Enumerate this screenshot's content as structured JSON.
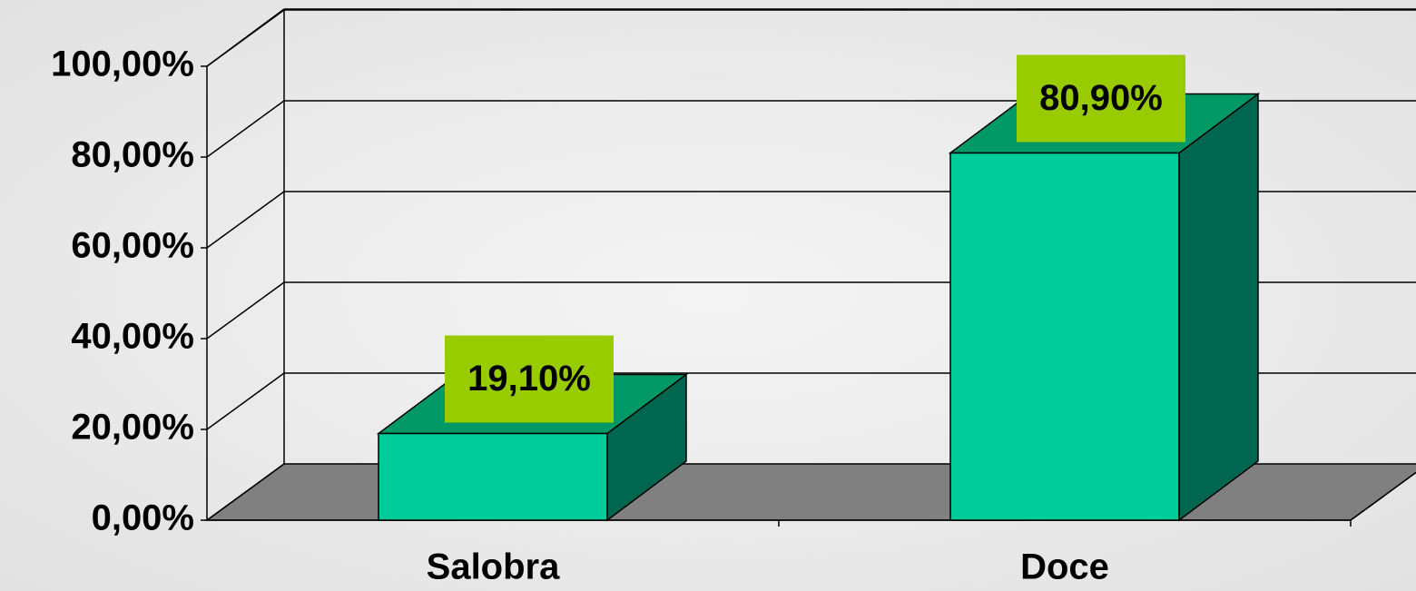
{
  "chart_data": {
    "type": "bar3d",
    "categories": [
      "Salobra",
      "Doce"
    ],
    "values": [
      19.1,
      80.9
    ],
    "value_labels": [
      "19,10%",
      "80,90%"
    ],
    "ylim": [
      0,
      100
    ],
    "yticks": [
      {
        "value": 0,
        "label": "0,00%"
      },
      {
        "value": 20,
        "label": "20,00%"
      },
      {
        "value": 40,
        "label": "40,00%"
      },
      {
        "value": 60,
        "label": "60,00%"
      },
      {
        "value": 80,
        "label": "80,00%"
      },
      {
        "value": 100,
        "label": "100,00%"
      }
    ],
    "colors": {
      "front": "#00cc99",
      "top": "#009966",
      "side": "#006650",
      "floor": "#808080",
      "label_box": "#99cc00"
    },
    "grid": true
  }
}
